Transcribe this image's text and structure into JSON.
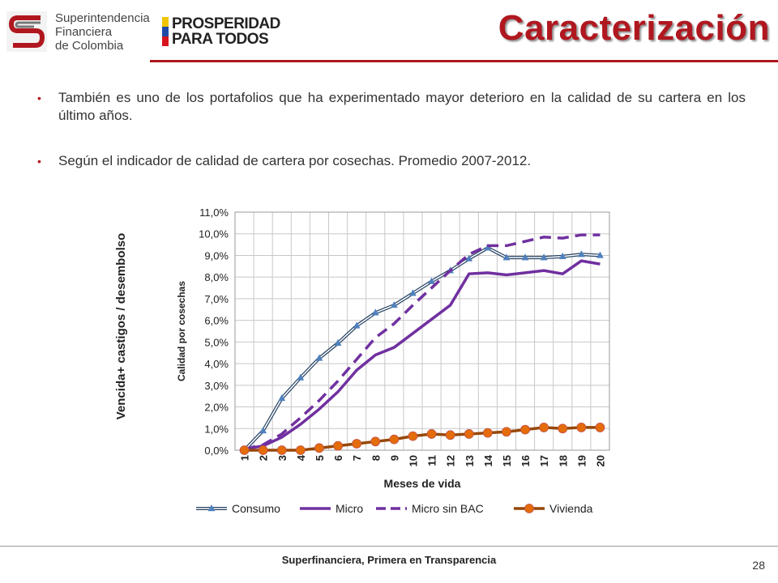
{
  "header": {
    "sfc_logo": {
      "line1": "Superintendencia",
      "line2": "Financiera",
      "line3": "de Colombia",
      "icon": "sfc-logo-icon"
    },
    "prosperidad_logo": {
      "line1": "PROSPERIDAD",
      "line2": "PARA TODOS",
      "colors": [
        "#f2c300",
        "#1f4aa8",
        "#d7141d"
      ]
    },
    "title": "Caracterización",
    "accent_color": "#b0171f"
  },
  "bullets": [
    "También es uno de los portafolios que ha experimentado mayor deterioro en la calidad de su cartera en los último años.",
    "Según el indicador de calidad de cartera por cosechas. Promedio 2007-2012."
  ],
  "chart_outer_label": "Vencida+ castigos / desembolso",
  "chart_data": {
    "type": "line",
    "xlabel": "Meses de vida",
    "ylabel": "Calidad por cosechas",
    "x": [
      1,
      2,
      3,
      4,
      5,
      6,
      7,
      8,
      9,
      10,
      11,
      12,
      13,
      14,
      15,
      16,
      17,
      18,
      19,
      20
    ],
    "ylim": [
      0,
      11
    ],
    "yticks": [
      "0,0%",
      "1,0%",
      "2,0%",
      "3,0%",
      "4,0%",
      "5,0%",
      "6,0%",
      "7,0%",
      "8,0%",
      "9,0%",
      "10,0%",
      "11,0%"
    ],
    "grid": true,
    "legend_position": "bottom",
    "series": [
      {
        "name": "Consumo",
        "color": "#244061",
        "style": "double-line-triangle",
        "values": [
          0.0,
          0.9,
          2.4,
          3.35,
          4.25,
          4.95,
          5.75,
          6.35,
          6.7,
          7.25,
          7.8,
          8.3,
          8.85,
          9.35,
          8.9,
          8.9,
          8.9,
          8.95,
          9.05,
          9.0
        ]
      },
      {
        "name": "Micro",
        "color": "#7030a0",
        "style": "solid",
        "values": [
          0.05,
          0.2,
          0.6,
          1.2,
          1.9,
          2.7,
          3.7,
          4.4,
          4.75,
          5.4,
          6.05,
          6.7,
          8.15,
          8.2,
          8.1,
          8.2,
          8.3,
          8.15,
          8.75,
          8.6
        ]
      },
      {
        "name": "Micro sin BAC",
        "color": "#7030a0",
        "style": "dashed",
        "values": [
          0.05,
          0.25,
          0.75,
          1.5,
          2.3,
          3.2,
          4.2,
          5.2,
          5.85,
          6.7,
          7.5,
          8.3,
          9.05,
          9.45,
          9.45,
          9.65,
          9.85,
          9.8,
          9.95,
          9.95
        ]
      },
      {
        "name": "Vivienda",
        "color": "#974706",
        "marker_color": "#e46c0a",
        "style": "solid-circle",
        "values": [
          0.0,
          0.0,
          0.0,
          0.0,
          0.1,
          0.2,
          0.3,
          0.4,
          0.5,
          0.65,
          0.75,
          0.7,
          0.75,
          0.8,
          0.85,
          0.95,
          1.05,
          1.0,
          1.05,
          1.05
        ]
      }
    ]
  },
  "footer": {
    "text": "Superfinanciera, Primera en Transparencia",
    "page_number": "28"
  }
}
